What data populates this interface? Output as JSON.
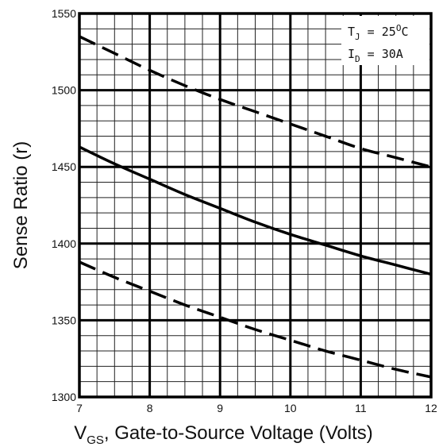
{
  "chart_data": {
    "type": "line",
    "xlabel": {
      "prefix": "V",
      "subscript": "GS",
      "text": ", Gate-to-Source Voltage (Volts)"
    },
    "ylabel": "Sense Ratio (r)",
    "xlim": [
      7,
      12
    ],
    "ylim": [
      1300,
      1550
    ],
    "x_ticks": [
      7,
      8,
      9,
      10,
      11,
      12
    ],
    "y_ticks": [
      1300,
      1350,
      1400,
      1450,
      1500,
      1550
    ],
    "x_minor_step": 0.25,
    "y_minor_step": 10,
    "grid": true,
    "annotations": [
      {
        "main": "T",
        "sub": "J",
        "rest": " = 25",
        "sup": "O",
        "tail": "C"
      },
      {
        "main": "I",
        "sub": "D",
        "rest": " = 30A",
        "sup": "",
        "tail": ""
      }
    ],
    "series": [
      {
        "style": "dashed",
        "x": [
          7,
          7.5,
          8,
          8.5,
          9,
          9.5,
          10,
          10.5,
          11,
          11.5,
          12
        ],
        "y": [
          1535,
          1524,
          1513,
          1503,
          1494,
          1486,
          1478,
          1470,
          1462,
          1456,
          1450
        ]
      },
      {
        "style": "solid",
        "x": [
          7,
          7.5,
          8,
          8.5,
          9,
          9.5,
          10,
          10.5,
          11,
          11.5,
          12
        ],
        "y": [
          1463,
          1452,
          1442,
          1432,
          1423,
          1414,
          1406,
          1399,
          1392,
          1386,
          1380
        ]
      },
      {
        "style": "dashed",
        "x": [
          7,
          7.5,
          8,
          8.5,
          9,
          9.5,
          10,
          10.5,
          11,
          11.5,
          12
        ],
        "y": [
          1388,
          1378,
          1369,
          1360,
          1352,
          1344,
          1337,
          1330,
          1324,
          1318,
          1313
        ]
      }
    ]
  }
}
